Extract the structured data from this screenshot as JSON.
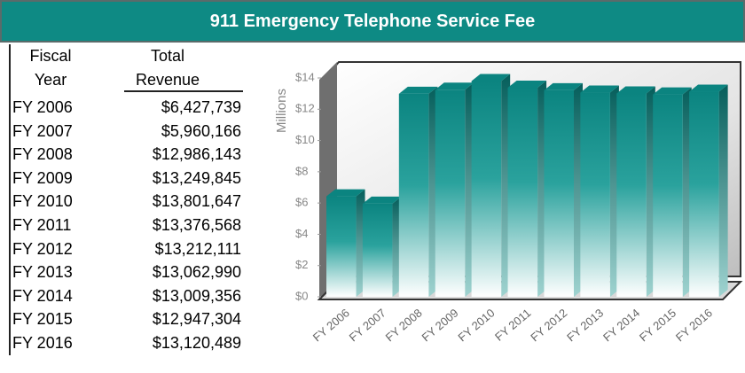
{
  "title": "911 Emergency Telephone Service Fee",
  "table": {
    "headers": [
      [
        "Fiscal",
        "Year"
      ],
      [
        "Total",
        "Revenue"
      ]
    ],
    "rows": [
      [
        "FY 2006",
        "$6,427,739"
      ],
      [
        "FY 2007",
        "$5,960,166"
      ],
      [
        "FY 2008",
        "$12,986,143"
      ],
      [
        "FY 2009",
        "$13,249,845"
      ],
      [
        "FY 2010",
        "$13,801,647"
      ],
      [
        "FY 2011",
        "$13,376,568"
      ],
      [
        "FY 2012",
        "$13,212,111"
      ],
      [
        "FY 2013",
        "$13,062,990"
      ],
      [
        "FY 2014",
        "$13,009,356"
      ],
      [
        "FY 2015",
        "$12,947,304"
      ],
      [
        "FY 2016",
        "$13,120,489"
      ]
    ]
  },
  "chart_data": {
    "type": "bar",
    "ylabel": "Millions",
    "categories": [
      "FY 2006",
      "FY 2007",
      "FY 2008",
      "FY 2009",
      "FY 2010",
      "FY 2011",
      "FY 2012",
      "FY 2013",
      "FY 2014",
      "FY 2015",
      "FY 2016"
    ],
    "values": [
      6.427739,
      5.960166,
      12.986143,
      13.249845,
      13.801647,
      13.376568,
      13.212111,
      13.06299,
      13.009356,
      12.947304,
      13.120489
    ],
    "color": "#0b8480",
    "ylim": [
      0,
      14
    ],
    "yticks": [
      {
        "value": 0,
        "label": "$0"
      },
      {
        "value": 2,
        "label": "$2"
      },
      {
        "value": 4,
        "label": "$4"
      },
      {
        "value": 6,
        "label": "$6"
      },
      {
        "value": 8,
        "label": "$8"
      },
      {
        "value": 10,
        "label": "$10"
      },
      {
        "value": 12,
        "label": "$12"
      },
      {
        "value": 14,
        "label": "$14"
      }
    ]
  }
}
